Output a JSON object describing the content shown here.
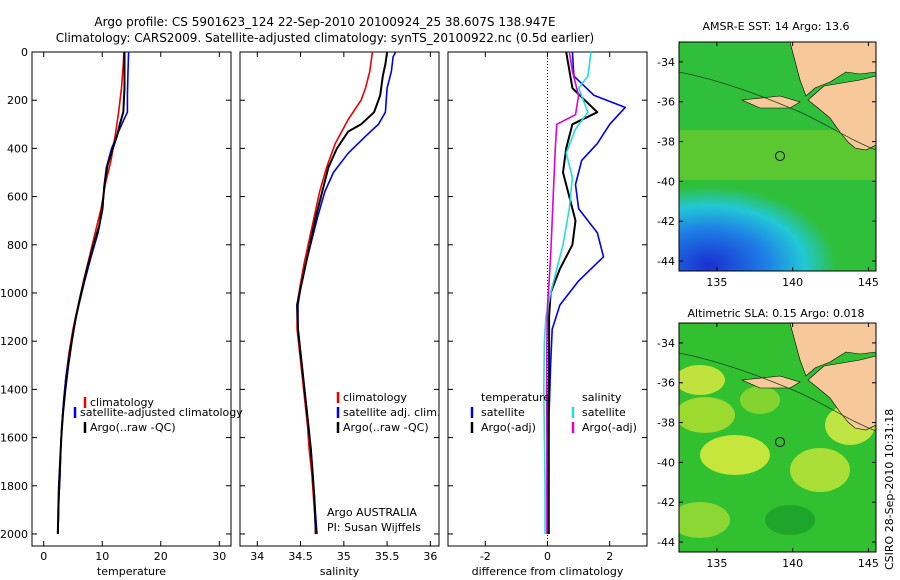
{
  "header": {
    "line1": "Argo profile: CS 5901623_124 22-Sep-2010 20100924_25 38.607S 138.947E",
    "line2": "Climatology: CARS2009. Satellite-adjusted climatology: synTS_20100922.nc (0.5d earlier)"
  },
  "colors": {
    "climatology": "#ee0000",
    "satellite": "#0000ee",
    "argo": "#000000",
    "sal_satellite": "#22dddd",
    "sal_argo": "#dd00dd",
    "land": "#f6c89a"
  },
  "credits": {
    "institution": "Argo AUSTRALIA",
    "pi": "PI: Susan Wijffels",
    "stamp": "CSIRO 28-Sep-2010 10:31:18"
  },
  "maps": [
    {
      "title": "AMSR-E SST: 14 Argo: 13.6",
      "yticks": [
        "-34",
        "-36",
        "-38",
        "-40",
        "-42",
        "-44"
      ],
      "xticks": [
        "135",
        "140",
        "145"
      ],
      "float_marker": "Argo float location"
    },
    {
      "title": "Altimetric SLA: 0.15 Argo: 0.018",
      "yticks": [
        "-34",
        "-36",
        "-38",
        "-40",
        "-42",
        "-44"
      ],
      "xticks": [
        "135",
        "140",
        "145"
      ],
      "float_marker": "Argo float location"
    }
  ],
  "chart_data": [
    {
      "type": "line",
      "xlabel": "temperature",
      "ylabel": "",
      "xlim": [
        -2,
        32
      ],
      "ylim": [
        2050,
        0
      ],
      "y_reversed": true,
      "xticks": [
        "0",
        "10",
        "20",
        "30"
      ],
      "yticks": [
        "0",
        "200",
        "400",
        "600",
        "800",
        "1000",
        "1200",
        "1400",
        "1600",
        "1800",
        "2000"
      ],
      "legend_entries": [
        "climatology",
        "satellite-adjusted climatology",
        "Argo(..raw -QC)"
      ],
      "series": [
        {
          "name": "climatology",
          "color": "#ee0000",
          "points": [
            [
              13.7,
              0
            ],
            [
              13.6,
              50
            ],
            [
              13.3,
              150
            ],
            [
              12.8,
              250
            ],
            [
              12.2,
              350
            ],
            [
              11.5,
              450
            ],
            [
              10.5,
              550
            ],
            [
              9.8,
              650
            ],
            [
              8.8,
              750
            ],
            [
              7.8,
              850
            ],
            [
              6.8,
              950
            ],
            [
              5.9,
              1050
            ],
            [
              5.0,
              1150
            ],
            [
              4.3,
              1250
            ],
            [
              3.8,
              1350
            ],
            [
              3.4,
              1450
            ],
            [
              3.1,
              1550
            ],
            [
              2.9,
              1650
            ],
            [
              2.8,
              1750
            ],
            [
              2.6,
              1850
            ],
            [
              2.5,
              1950
            ],
            [
              2.4,
              2000
            ]
          ]
        },
        {
          "name": "satellite-adjusted climatology",
          "color": "#0000ee",
          "points": [
            [
              14.5,
              0
            ],
            [
              14.4,
              80
            ],
            [
              14.3,
              180
            ],
            [
              14.3,
              250
            ],
            [
              13.7,
              280
            ],
            [
              12.8,
              330
            ],
            [
              11.6,
              400
            ],
            [
              10.7,
              480
            ],
            [
              10.3,
              560
            ],
            [
              10.1,
              650
            ],
            [
              9.3,
              750
            ],
            [
              8.1,
              850
            ],
            [
              7.0,
              950
            ],
            [
              6.0,
              1050
            ],
            [
              5.1,
              1150
            ],
            [
              4.4,
              1250
            ],
            [
              3.8,
              1350
            ],
            [
              3.4,
              1450
            ],
            [
              3.1,
              1550
            ],
            [
              2.9,
              1650
            ],
            [
              2.8,
              1750
            ],
            [
              2.6,
              1850
            ],
            [
              2.5,
              1950
            ],
            [
              2.4,
              2000
            ]
          ]
        },
        {
          "name": "Argo(..raw -QC)",
          "color": "#000000",
          "points": [
            [
              13.8,
              0
            ],
            [
              13.8,
              150
            ],
            [
              13.6,
              250
            ],
            [
              13.0,
              300
            ],
            [
              12.5,
              350
            ],
            [
              11.8,
              400
            ],
            [
              10.9,
              470
            ],
            [
              10.4,
              550
            ],
            [
              10.0,
              650
            ],
            [
              9.5,
              720
            ],
            [
              8.5,
              800
            ],
            [
              7.4,
              900
            ],
            [
              6.4,
              1000
            ],
            [
              5.5,
              1100
            ],
            [
              4.8,
              1200
            ],
            [
              4.2,
              1300
            ],
            [
              3.7,
              1400
            ],
            [
              3.3,
              1500
            ],
            [
              3.0,
              1600
            ],
            [
              2.8,
              1700
            ],
            [
              2.6,
              1800
            ],
            [
              2.5,
              1900
            ],
            [
              2.4,
              2000
            ]
          ]
        }
      ]
    },
    {
      "type": "line",
      "xlabel": "salinity",
      "ylabel": "",
      "xlim": [
        33.8,
        36.1
      ],
      "ylim": [
        2050,
        0
      ],
      "y_reversed": true,
      "xticks": [
        "34",
        "34.5",
        "35",
        "35.5",
        "36"
      ],
      "yticks": [],
      "legend_entries": [
        "climatology",
        "satellite adj. clim.",
        "Argo(..raw -QC)"
      ],
      "series": [
        {
          "name": "climatology",
          "color": "#ee0000",
          "points": [
            [
              35.33,
              0
            ],
            [
              35.3,
              80
            ],
            [
              35.25,
              150
            ],
            [
              35.2,
              200
            ],
            [
              35.05,
              280
            ],
            [
              34.9,
              380
            ],
            [
              34.8,
              480
            ],
            [
              34.72,
              580
            ],
            [
              34.66,
              680
            ],
            [
              34.6,
              780
            ],
            [
              34.54,
              880
            ],
            [
              34.49,
              980
            ],
            [
              34.46,
              1050
            ],
            [
              34.46,
              1150
            ],
            [
              34.49,
              1250
            ],
            [
              34.52,
              1350
            ],
            [
              34.55,
              1450
            ],
            [
              34.58,
              1550
            ],
            [
              34.6,
              1650
            ],
            [
              34.63,
              1750
            ],
            [
              34.65,
              1850
            ],
            [
              34.67,
              1950
            ],
            [
              34.67,
              2000
            ]
          ]
        },
        {
          "name": "satellite adj. clim.",
          "color": "#0000ee",
          "points": [
            [
              35.6,
              0
            ],
            [
              35.57,
              20
            ],
            [
              35.55,
              80
            ],
            [
              35.5,
              150
            ],
            [
              35.48,
              250
            ],
            [
              35.4,
              300
            ],
            [
              35.25,
              350
            ],
            [
              35.05,
              420
            ],
            [
              34.88,
              500
            ],
            [
              34.78,
              580
            ],
            [
              34.7,
              680
            ],
            [
              34.63,
              780
            ],
            [
              34.56,
              880
            ],
            [
              34.5,
              980
            ],
            [
              34.47,
              1050
            ],
            [
              34.47,
              1150
            ],
            [
              34.5,
              1250
            ],
            [
              34.53,
              1350
            ],
            [
              34.56,
              1450
            ],
            [
              34.59,
              1550
            ],
            [
              34.62,
              1650
            ],
            [
              34.64,
              1750
            ],
            [
              34.66,
              1850
            ],
            [
              34.68,
              1950
            ],
            [
              34.69,
              2000
            ]
          ]
        },
        {
          "name": "Argo(..raw -QC)",
          "color": "#000000",
          "points": [
            [
              35.5,
              0
            ],
            [
              35.48,
              50
            ],
            [
              35.45,
              100
            ],
            [
              35.42,
              180
            ],
            [
              35.35,
              250
            ],
            [
              35.2,
              300
            ],
            [
              35.05,
              330
            ],
            [
              34.92,
              400
            ],
            [
              34.82,
              480
            ],
            [
              34.75,
              580
            ],
            [
              34.68,
              680
            ],
            [
              34.62,
              780
            ],
            [
              34.56,
              880
            ],
            [
              34.5,
              980
            ],
            [
              34.46,
              1050
            ],
            [
              34.47,
              1150
            ],
            [
              34.5,
              1250
            ],
            [
              34.53,
              1350
            ],
            [
              34.56,
              1450
            ],
            [
              34.59,
              1550
            ],
            [
              34.62,
              1650
            ],
            [
              34.64,
              1750
            ],
            [
              34.66,
              1850
            ],
            [
              34.67,
              1950
            ],
            [
              34.68,
              2000
            ]
          ]
        }
      ]
    },
    {
      "type": "line",
      "xlabel": "difference from climatology",
      "ylabel": "",
      "xlim": [
        -3.2,
        3.2
      ],
      "ylim": [
        2050,
        0
      ],
      "y_reversed": true,
      "xticks": [
        "-2",
        "0",
        "2"
      ],
      "yticks": [],
      "zero_line": true,
      "legend_entries": [
        "temperature",
        "satellite",
        "Argo(-adj)",
        "salinity",
        "satellite",
        "Argo(-adj)"
      ],
      "series": [
        {
          "name": "satellite",
          "group": "temperature",
          "color": "#0000ee",
          "points": [
            [
              0.8,
              0
            ],
            [
              0.85,
              100
            ],
            [
              1.5,
              180
            ],
            [
              2.5,
              230
            ],
            [
              2.0,
              300
            ],
            [
              1.6,
              380
            ],
            [
              1.1,
              450
            ],
            [
              0.9,
              550
            ],
            [
              1.0,
              650
            ],
            [
              1.6,
              750
            ],
            [
              1.8,
              850
            ],
            [
              1.0,
              950
            ],
            [
              0.4,
              1050
            ],
            [
              0.15,
              1150
            ],
            [
              0.1,
              1300
            ],
            [
              0.05,
              1500
            ],
            [
              0.05,
              1700
            ],
            [
              0.05,
              1900
            ],
            [
              0.05,
              2000
            ]
          ]
        },
        {
          "name": "Argo(-adj)",
          "group": "temperature",
          "color": "#000000",
          "points": [
            [
              0.6,
              0
            ],
            [
              0.8,
              150
            ],
            [
              1.2,
              200
            ],
            [
              1.6,
              250
            ],
            [
              0.8,
              300
            ],
            [
              0.6,
              400
            ],
            [
              0.5,
              500
            ],
            [
              0.7,
              600
            ],
            [
              0.9,
              700
            ],
            [
              0.8,
              800
            ],
            [
              0.4,
              900
            ],
            [
              0.1,
              1000
            ],
            [
              0.05,
              1100
            ],
            [
              0.05,
              1300
            ],
            [
              0.03,
              1500
            ],
            [
              0.02,
              1700
            ],
            [
              0.02,
              1900
            ],
            [
              0.02,
              2000
            ]
          ]
        },
        {
          "name": "satellite",
          "group": "salinity",
          "color": "#22dddd",
          "points": [
            [
              1.4,
              0
            ],
            [
              1.3,
              100
            ],
            [
              1.0,
              150
            ],
            [
              1.3,
              250
            ],
            [
              0.9,
              320
            ],
            [
              0.6,
              420
            ],
            [
              0.8,
              520
            ],
            [
              0.7,
              650
            ],
            [
              0.5,
              800
            ],
            [
              0.3,
              900
            ],
            [
              0.1,
              1000
            ],
            [
              -0.05,
              1100
            ],
            [
              -0.1,
              1200
            ],
            [
              -0.12,
              1400
            ],
            [
              -0.1,
              1600
            ],
            [
              -0.08,
              1800
            ],
            [
              -0.08,
              2000
            ]
          ]
        },
        {
          "name": "Argo(-adj)",
          "group": "salinity",
          "color": "#dd00dd",
          "points": [
            [
              0.7,
              0
            ],
            [
              0.8,
              80
            ],
            [
              1.0,
              180
            ],
            [
              0.9,
              260
            ],
            [
              0.3,
              300
            ],
            [
              0.25,
              400
            ],
            [
              0.2,
              550
            ],
            [
              0.15,
              700
            ],
            [
              0.1,
              850
            ],
            [
              0.05,
              950
            ],
            [
              0.0,
              1050
            ],
            [
              -0.02,
              1200
            ],
            [
              -0.03,
              1400
            ],
            [
              -0.02,
              1600
            ],
            [
              -0.02,
              1800
            ],
            [
              -0.02,
              2000
            ]
          ]
        }
      ]
    }
  ]
}
